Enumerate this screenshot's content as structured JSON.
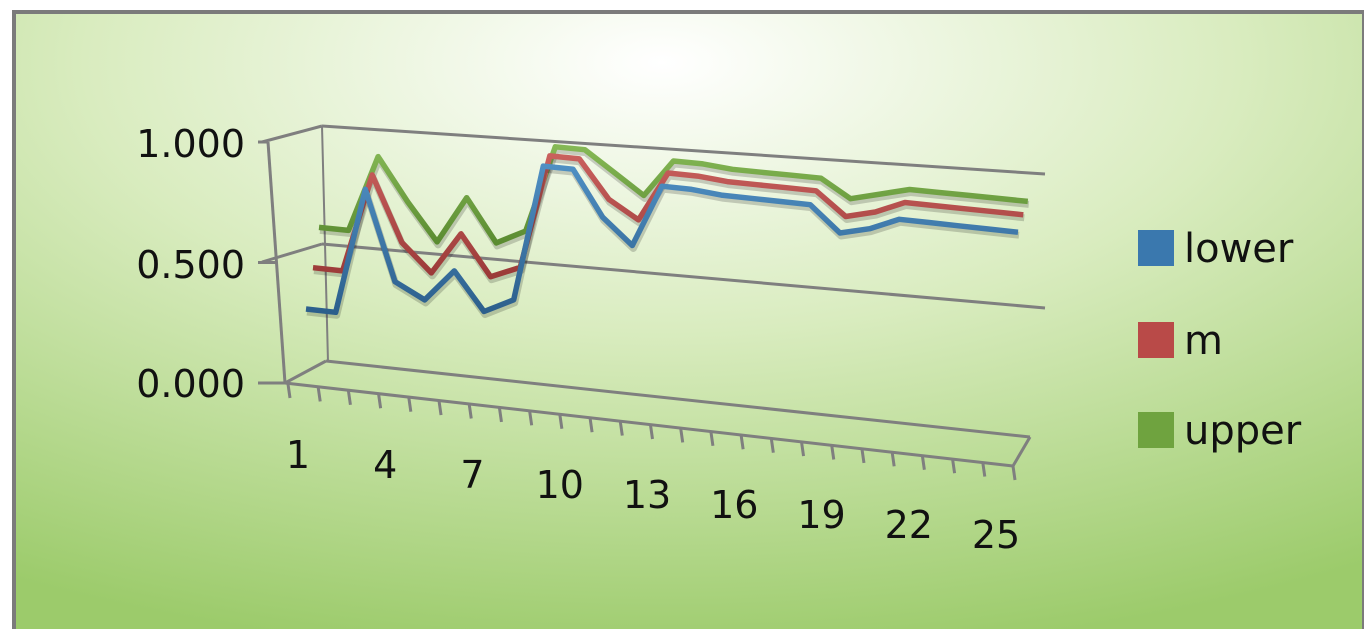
{
  "chart_data": {
    "type": "line",
    "title": "",
    "xlabel": "",
    "ylabel": "",
    "ylim": [
      0,
      1
    ],
    "yticks": [
      "0.000",
      "0.500",
      "1.000"
    ],
    "x": [
      1,
      2,
      3,
      4,
      5,
      6,
      7,
      8,
      9,
      10,
      11,
      12,
      13,
      14,
      15,
      16,
      17,
      18,
      19,
      20,
      21,
      22,
      23,
      24,
      25
    ],
    "xtick_labels": [
      "1",
      "4",
      "7",
      "10",
      "13",
      "16",
      "19",
      "22",
      "25"
    ],
    "grid": true,
    "legend": "right",
    "series": [
      {
        "name": "lower",
        "color": "#3A78AE",
        "values": [
          0.28,
          0.28,
          0.79,
          0.43,
          0.37,
          0.5,
          0.35,
          0.41,
          0.96,
          0.96,
          0.78,
          0.68,
          0.93,
          0.93,
          0.92,
          0.92,
          0.92,
          0.92,
          0.82,
          0.85,
          0.9,
          0.9,
          0.9,
          0.9,
          0.9
        ]
      },
      {
        "name": "m",
        "color": "#B94A48",
        "values": [
          0.42,
          0.42,
          0.82,
          0.56,
          0.45,
          0.62,
          0.46,
          0.51,
          0.97,
          0.97,
          0.82,
          0.75,
          0.95,
          0.95,
          0.94,
          0.94,
          0.94,
          0.94,
          0.85,
          0.88,
          0.93,
          0.93,
          0.93,
          0.93,
          0.93
        ]
      },
      {
        "name": "upper",
        "color": "#6FA33F",
        "values": [
          0.56,
          0.56,
          0.87,
          0.7,
          0.55,
          0.74,
          0.57,
          0.63,
          0.98,
          0.98,
          0.9,
          0.82,
          0.97,
          0.97,
          0.96,
          0.96,
          0.96,
          0.96,
          0.89,
          0.92,
          0.95,
          0.95,
          0.95,
          0.95,
          0.95
        ]
      }
    ]
  }
}
